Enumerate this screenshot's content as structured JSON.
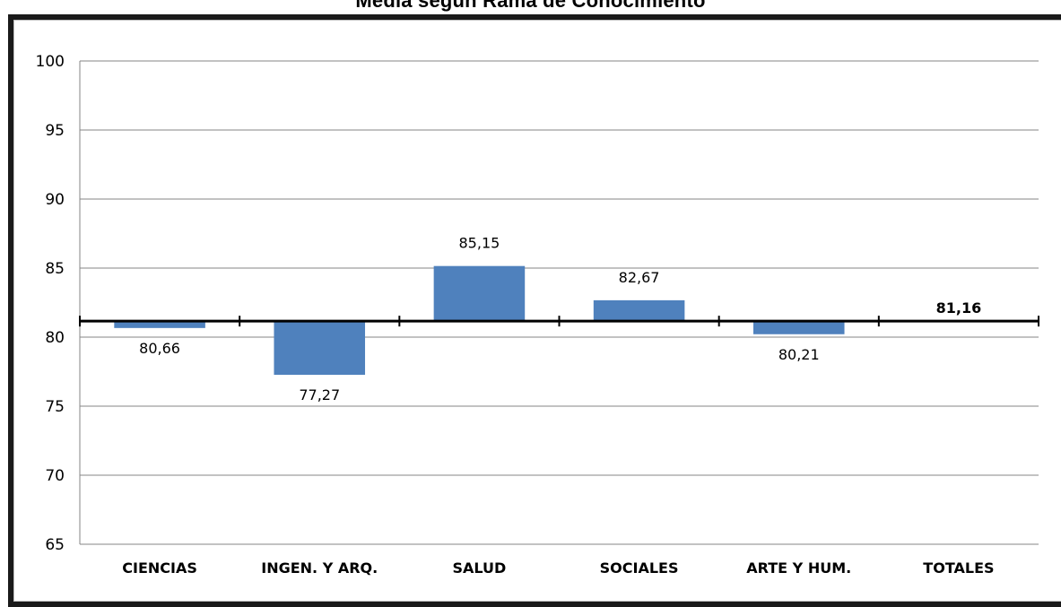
{
  "chart_data": {
    "type": "bar",
    "title": "Media según Rama de Conocimiento",
    "categories": [
      "CIENCIAS",
      "INGEN. Y ARQ.",
      "SALUD",
      "SOCIALES",
      "ARTE Y HUM.",
      "TOTALES"
    ],
    "values": [
      80.66,
      77.27,
      85.15,
      82.67,
      80.21,
      81.16
    ],
    "data_labels": [
      "80,66",
      "77,27",
      "85,15",
      "82,67",
      "80,21",
      "81,16"
    ],
    "baseline": 81.16,
    "ylim": [
      65,
      100
    ],
    "yticks": [
      100,
      95,
      90,
      85,
      80,
      75,
      70,
      65
    ],
    "xlabel": "",
    "ylabel": "",
    "grid": true,
    "legend": "none",
    "colors": {
      "bar": "#4f81bd",
      "grid": "#868686",
      "baseline": "#000000",
      "frame": "#1a1a1a"
    }
  }
}
